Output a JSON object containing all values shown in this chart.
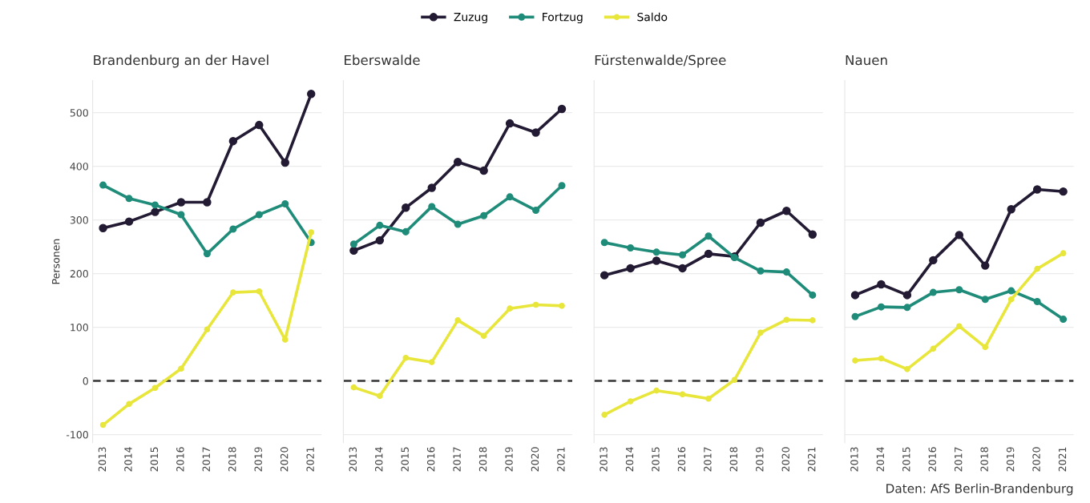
{
  "chart_data": [
    {
      "type": "line",
      "title": "Brandenburg an der Havel",
      "ylabel": "Personen",
      "categories": [
        "2013",
        "2014",
        "2015",
        "2016",
        "2017",
        "2018",
        "2019",
        "2020",
        "2021"
      ],
      "ylim": [
        -115,
        560
      ],
      "yticks": [
        -100,
        0,
        100,
        200,
        300,
        400,
        500
      ],
      "grid": "y",
      "marker": "circle",
      "legend": "top",
      "series": [
        {
          "name": "Zuzug",
          "color": "#231a33",
          "values": [
            285,
            297,
            315,
            333,
            333,
            447,
            477,
            407,
            535
          ]
        },
        {
          "name": "Fortzug",
          "color": "#1f8c7a",
          "values": [
            365,
            340,
            328,
            310,
            237,
            283,
            310,
            330,
            258
          ]
        },
        {
          "name": "Saldo",
          "color": "#e8e63a",
          "values": [
            -82,
            -43,
            -13,
            23,
            96,
            165,
            167,
            77,
            277
          ]
        }
      ],
      "ref_lines": [
        {
          "axis": "y",
          "value": 0,
          "color": "#333333",
          "line_style": "dashed"
        }
      ]
    },
    {
      "type": "line",
      "title": "Eberswalde",
      "categories": [
        "2013",
        "2014",
        "2015",
        "2016",
        "2017",
        "2018",
        "2019",
        "2020",
        "2021"
      ],
      "ylim": [
        -115,
        560
      ],
      "yticks": [
        -100,
        0,
        100,
        200,
        300,
        400,
        500
      ],
      "grid": "y",
      "marker": "circle",
      "tick_labels": "x",
      "series": [
        {
          "color": "#231a33",
          "values": [
            243,
            262,
            323,
            360,
            408,
            392,
            480,
            463,
            507
          ]
        },
        {
          "color": "#1f8c7a",
          "values": [
            255,
            290,
            278,
            325,
            292,
            308,
            343,
            318,
            364
          ]
        },
        {
          "color": "#e8e63a",
          "values": [
            -12,
            -28,
            43,
            35,
            113,
            84,
            135,
            142,
            140
          ]
        }
      ],
      "ref_lines": [
        {
          "axis": "y",
          "value": 0,
          "color": "#333333",
          "line_style": "dashed"
        }
      ]
    },
    {
      "type": "line",
      "title": "Fürstenwalde/Spree",
      "categories": [
        "2013",
        "2014",
        "2015",
        "2016",
        "2017",
        "2018",
        "2019",
        "2020",
        "2021"
      ],
      "ylim": [
        -115,
        560
      ],
      "yticks": [
        -100,
        0,
        100,
        200,
        300,
        400,
        500
      ],
      "grid": "y",
      "marker": "circle",
      "tick_labels": "x",
      "series": [
        {
          "color": "#231a33",
          "values": [
            197,
            210,
            224,
            210,
            237,
            232,
            295,
            317,
            273
          ]
        },
        {
          "color": "#1f8c7a",
          "values": [
            258,
            248,
            240,
            235,
            270,
            230,
            205,
            203,
            160
          ]
        },
        {
          "color": "#e8e63a",
          "values": [
            -63,
            -38,
            -18,
            -25,
            -33,
            2,
            90,
            114,
            113
          ]
        }
      ],
      "ref_lines": [
        {
          "axis": "y",
          "value": 0,
          "color": "#333333",
          "line_style": "dashed"
        }
      ]
    },
    {
      "type": "line",
      "title": "Nauen",
      "categories": [
        "2013",
        "2014",
        "2015",
        "2016",
        "2017",
        "2018",
        "2019",
        "2020",
        "2021"
      ],
      "ylim": [
        -115,
        560
      ],
      "yticks": [
        -100,
        0,
        100,
        200,
        300,
        400,
        500
      ],
      "grid": "y",
      "marker": "circle",
      "tick_labels": "x",
      "series": [
        {
          "color": "#231a33",
          "values": [
            160,
            180,
            160,
            225,
            272,
            215,
            320,
            357,
            353
          ]
        },
        {
          "color": "#1f8c7a",
          "values": [
            120,
            138,
            137,
            165,
            170,
            152,
            168,
            148,
            115
          ]
        },
        {
          "color": "#e8e63a",
          "values": [
            38,
            42,
            22,
            60,
            102,
            63,
            152,
            209,
            238
          ]
        }
      ],
      "ref_lines": [
        {
          "axis": "y",
          "value": 0,
          "color": "#333333",
          "line_style": "dashed"
        }
      ],
      "annotations": [
        "Daten: AfS Berlin-Brandenburg"
      ]
    }
  ]
}
